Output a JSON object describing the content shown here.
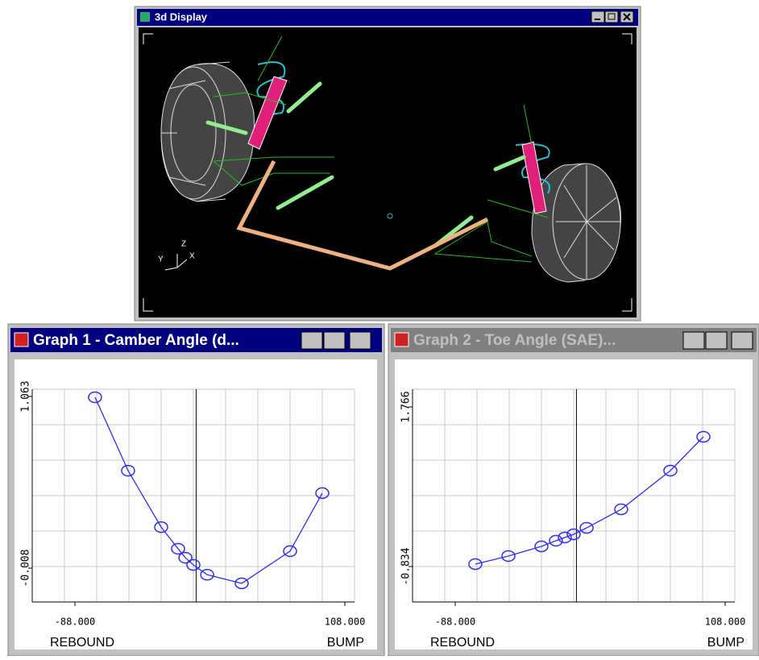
{
  "display": {
    "title": "3d Display",
    "axis_labels": [
      "Z",
      "Y",
      "X"
    ]
  },
  "chart_data": [
    {
      "type": "line",
      "title": "Graph 1 - Camber Angle (d...",
      "active": true,
      "x": [
        -73.4,
        -49.4,
        -25.4,
        -13.1,
        -7.8,
        -2.0,
        8.0,
        33.1,
        68.2,
        91.6
      ],
      "values": [
        1.058,
        0.6,
        0.248,
        0.113,
        0.057,
        0.012,
        -0.049,
        -0.103,
        0.098,
        0.46
      ],
      "color": "#2d2dff",
      "marker": "circle",
      "xlim": [
        -119,
        115
      ],
      "ylim": [
        -0.219,
        1.108
      ],
      "xticks": [
        {
          "value": -88,
          "label": "-88.000"
        },
        {
          "value": 108,
          "label": "108.000"
        }
      ],
      "yticks": [
        {
          "value": -0.008,
          "label": "-0.008"
        },
        1.063
      ],
      "annotations": [
        "REBOUND",
        "BUMP"
      ]
    },
    {
      "type": "line",
      "title": "Graph 2 - Toe Angle (SAE)...",
      "active": false,
      "x": [
        -73.4,
        -49.4,
        -25.4,
        -14.9,
        -8.4,
        -2.0,
        7.4,
        32.5,
        68.2,
        92.2
      ],
      "values": [
        -0.795,
        -0.663,
        -0.506,
        -0.414,
        -0.361,
        -0.309,
        -0.204,
        0.098,
        0.729,
        1.28
      ],
      "color": "#2d2dff",
      "marker": "circle",
      "xlim": [
        -119,
        115
      ],
      "ylim": [
        -1.412,
        2.055
      ],
      "xticks": [
        {
          "value": -88,
          "label": "-88.000"
        },
        {
          "value": 108,
          "label": "108.000"
        }
      ],
      "yticks": [
        {
          "value": -0.834,
          "label": "-0.834"
        },
        1.766
      ],
      "annotations": [
        "REBOUND",
        "BUMP"
      ]
    }
  ]
}
